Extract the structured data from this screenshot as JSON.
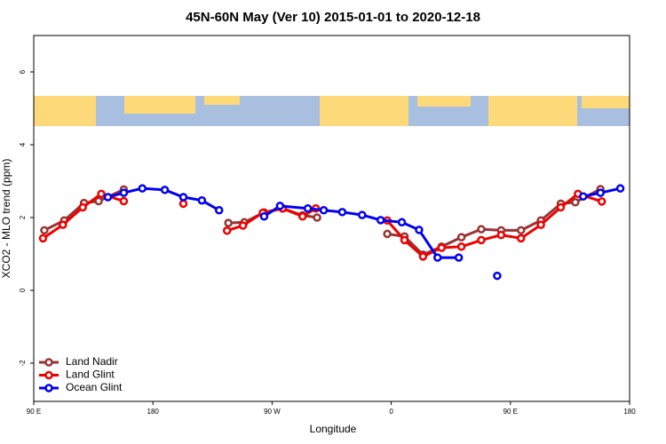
{
  "chart_data": {
    "type": "line",
    "title": "45N-60N May (Ver 10)   2015-01-01 to 2020-12-18",
    "xlabel": "Longitude",
    "ylabel": "XCO2 - MLO trend (ppm)",
    "xlim": [
      90,
      540
    ],
    "xticks": [
      {
        "value": 90,
        "label": "90 E"
      },
      180,
      {
        "value": 270,
        "label": "90 W"
      },
      {
        "value": 360,
        "label": "0"
      },
      {
        "value": 450,
        "label": "90 E"
      },
      {
        "value": 540,
        "label": "180"
      }
    ],
    "ylim": [
      -3.05,
      7
    ],
    "yticks": [
      -2,
      0,
      2,
      4,
      6
    ],
    "legend": "bottom-left",
    "series": [
      {
        "name": "Land Nadir",
        "color": "#993333",
        "x": [
          98,
          113,
          128,
          139,
          158,
          null,
          237,
          249,
          264,
          278,
          293,
          304,
          null,
          357,
          370,
          384,
          398,
          413,
          428,
          443,
          458,
          473,
          488,
          499,
          518
        ],
        "values": [
          1.65,
          1.92,
          2.4,
          2.45,
          2.77,
          null,
          1.85,
          1.87,
          2.14,
          2.25,
          2.06,
          2.0,
          null,
          1.55,
          1.48,
          0.98,
          1.2,
          1.46,
          1.68,
          1.65,
          1.65,
          1.92,
          2.38,
          2.42,
          2.78
        ]
      },
      {
        "name": "Land Glint",
        "color": "#ee0000",
        "x": [
          97,
          112,
          127,
          141,
          158,
          null,
          203,
          null,
          236,
          248,
          263,
          278,
          293,
          303,
          null,
          357,
          370,
          384,
          398,
          413,
          428,
          443,
          458,
          473,
          488,
          501,
          519
        ],
        "values": [
          1.43,
          1.8,
          2.28,
          2.65,
          2.45,
          null,
          2.38,
          null,
          1.64,
          1.78,
          2.13,
          2.25,
          2.03,
          2.25,
          null,
          1.92,
          1.38,
          0.93,
          1.17,
          1.2,
          1.38,
          1.52,
          1.43,
          1.8,
          2.28,
          2.65,
          2.44
        ]
      },
      {
        "name": "Ocean Glint",
        "color": "#0000ee",
        "x": [
          146,
          158,
          172,
          189,
          203,
          217,
          230,
          null,
          264,
          276,
          297,
          309,
          323,
          338,
          352,
          368,
          381,
          395,
          411,
          null,
          440,
          null,
          505,
          518,
          533
        ],
        "values": [
          2.56,
          2.68,
          2.8,
          2.76,
          2.56,
          2.47,
          2.2,
          null,
          2.03,
          2.32,
          2.25,
          2.2,
          2.15,
          2.07,
          1.93,
          1.87,
          1.66,
          0.9,
          0.9,
          null,
          0.4,
          null,
          2.58,
          2.68,
          2.8
        ]
      }
    ]
  }
}
